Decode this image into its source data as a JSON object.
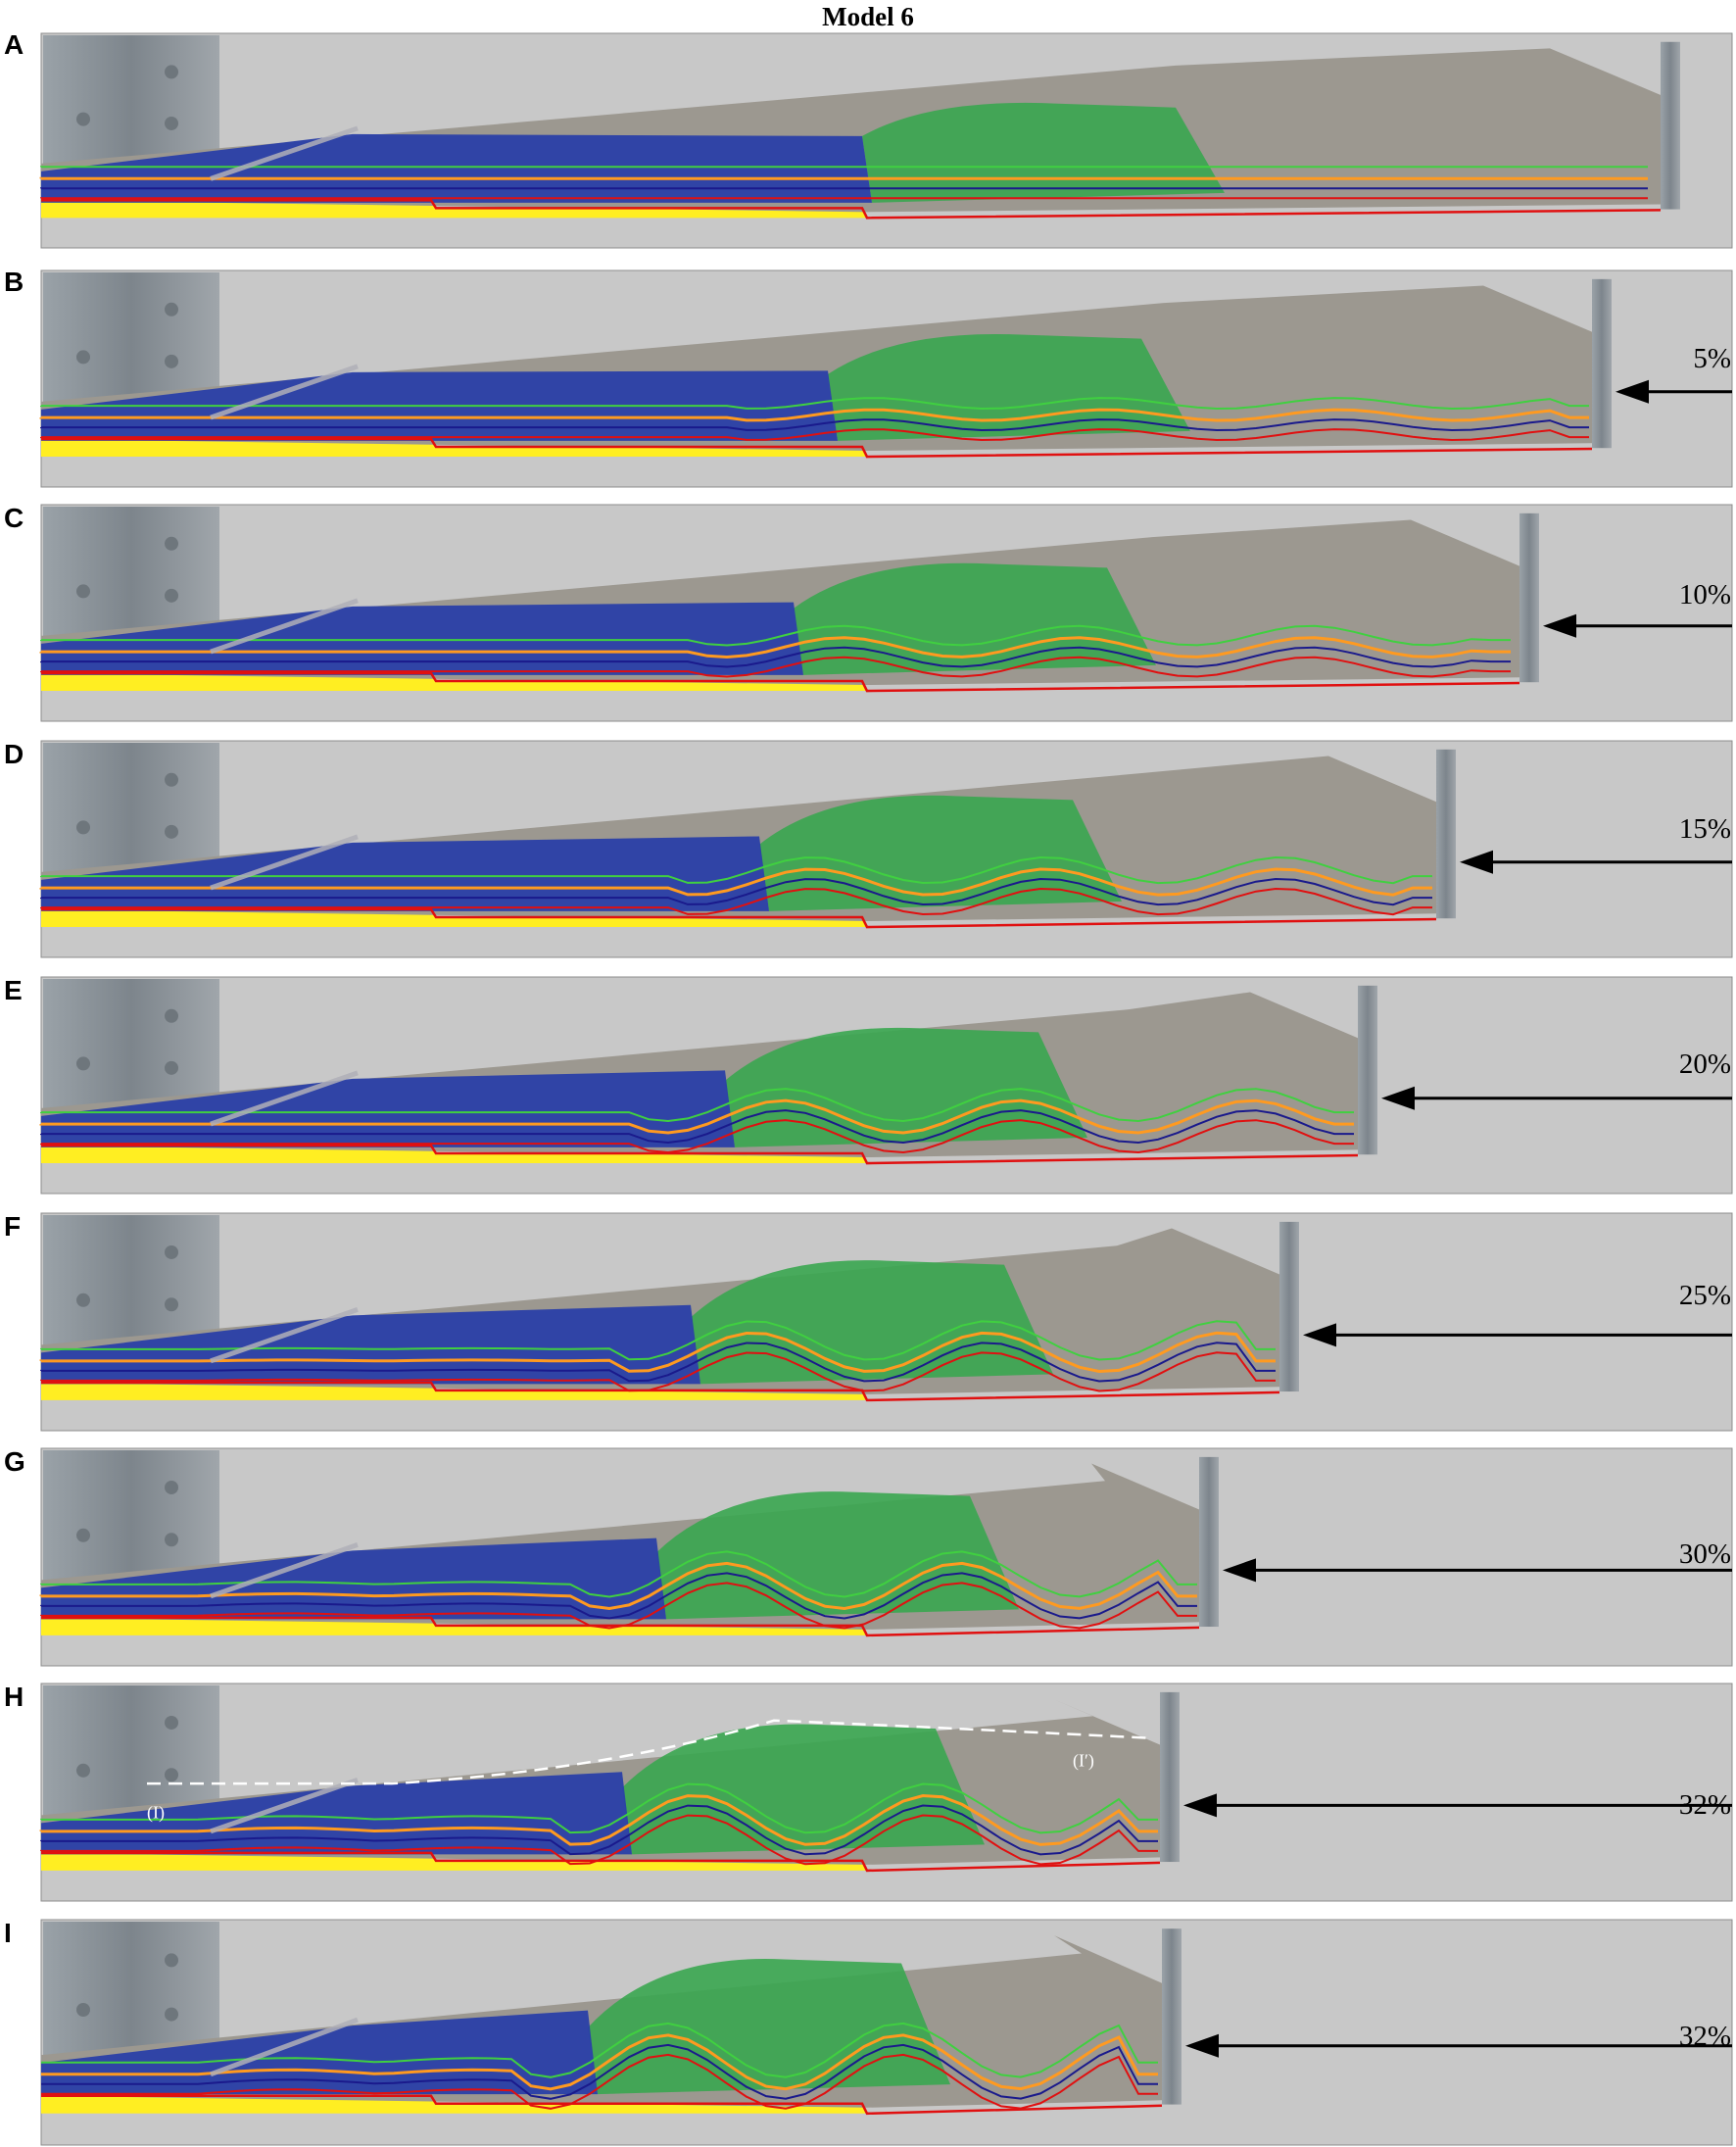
{
  "figure": {
    "title": "Model 6"
  },
  "panels": [
    {
      "letter": "A",
      "shortening": ""
    },
    {
      "letter": "B",
      "shortening": "5%"
    },
    {
      "letter": "C",
      "shortening": "10%"
    },
    {
      "letter": "D",
      "shortening": "15%"
    },
    {
      "letter": "E",
      "shortening": "20%"
    },
    {
      "letter": "F",
      "shortening": "25%"
    },
    {
      "letter": "G",
      "shortening": "30%"
    },
    {
      "letter": "H",
      "shortening": "32%",
      "section_start": "(I)",
      "section_end": "(I′)"
    },
    {
      "letter": "I",
      "shortening": "32%"
    }
  ],
  "colors": {
    "background_panel": "#c8c8c8",
    "blue_layer": "#2a3fa8",
    "green_layer": "#3aa650",
    "sand": "#9c9890",
    "yellow_base": "#ffee22",
    "red_line": "#e01010",
    "orange_line": "#ff9a20",
    "green_line": "#40d040",
    "navy_line": "#1a1a8c",
    "steel": "#8a9298"
  }
}
